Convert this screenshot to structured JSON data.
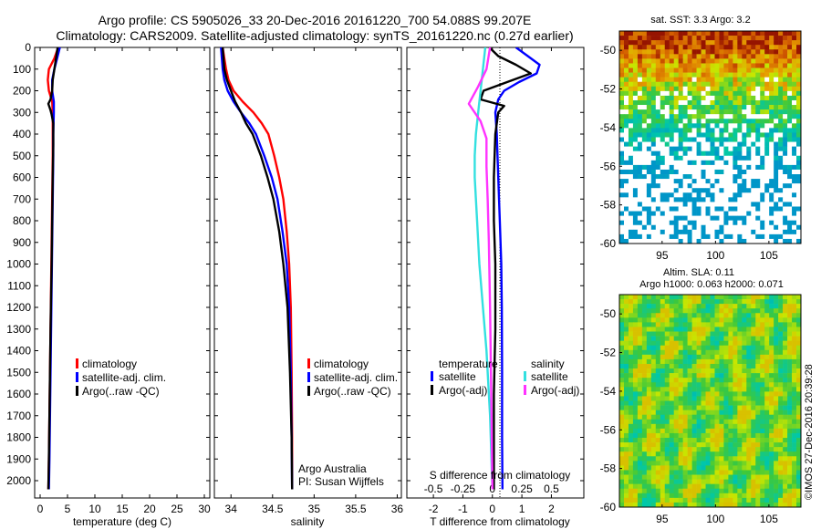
{
  "header": {
    "title_line1": "Argo profile: CS 5905026_33 20-Dec-2016 20161220_700 54.088S 99.207E",
    "title_line2": "Climatology: CARS2009. Satellite-adjusted climatology: synTS_20161220.nc (0.27d earlier)"
  },
  "colors": {
    "climatology": "#ff0000",
    "satellite_adj": "#0000ff",
    "argo": "#000000",
    "satellite_s": "#33e0e0",
    "argo_s": "#ff33ff"
  },
  "chart_data": [
    {
      "type": "line",
      "xlabel": "temperature (deg C)",
      "ylabel": "",
      "xlim": [
        -1,
        31
      ],
      "ylim": [
        2080,
        0
      ],
      "xticks": [
        "0",
        "5",
        "10",
        "15",
        "20",
        "25",
        "30"
      ],
      "yticks": [
        "0",
        "100",
        "200",
        "300",
        "400",
        "500",
        "600",
        "700",
        "800",
        "900",
        "1000",
        "1100",
        "1200",
        "1300",
        "1400",
        "1500",
        "1600",
        "1700",
        "1800",
        "1900",
        "2000"
      ],
      "legend": [
        "climatology",
        "satellite-adj. clim.",
        "Argo(..raw -QC)"
      ],
      "series": [
        {
          "name": "climatology",
          "color": "#ff0000",
          "x": [
            3.3,
            2.6,
            1.6,
            1.4,
            1.6,
            2.2,
            2.3,
            2.3,
            2.3,
            2.2,
            2.1,
            2.0,
            1.9,
            1.8,
            1.7,
            1.6,
            1.5
          ],
          "y": [
            0,
            50,
            100,
            150,
            200,
            250,
            300,
            400,
            500,
            700,
            900,
            1100,
            1300,
            1500,
            1700,
            1900,
            2040
          ]
        },
        {
          "name": "satellite-adj. clim.",
          "color": "#0000ff",
          "x": [
            3.6,
            3.1,
            2.6,
            2.2,
            2.2,
            2.5,
            2.5,
            2.4,
            2.4,
            2.3,
            2.2,
            2.1,
            2.0,
            1.9,
            1.8,
            1.7,
            1.6
          ],
          "y": [
            0,
            50,
            100,
            150,
            200,
            250,
            300,
            400,
            500,
            700,
            900,
            1100,
            1300,
            1500,
            1700,
            1900,
            2040
          ]
        },
        {
          "name": "Argo(..raw -QC)",
          "color": "#000000",
          "x": [
            3.2,
            2.9,
            2.6,
            2.3,
            2.2,
            1.9,
            1.5,
            1.9,
            2.1,
            2.4,
            2.4,
            2.3,
            2.2,
            2.1,
            1.9,
            1.8,
            1.7,
            1.6,
            1.5
          ],
          "y": [
            0,
            50,
            100,
            150,
            200,
            240,
            260,
            290,
            310,
            350,
            450,
            600,
            800,
            1000,
            1300,
            1500,
            1700,
            1900,
            2040
          ]
        }
      ]
    },
    {
      "type": "line",
      "xlabel": "salinity",
      "ylabel": "",
      "xlim": [
        33.8,
        36.05
      ],
      "ylim": [
        2080,
        0
      ],
      "xticks": [
        "34",
        "34.5",
        "35",
        "35.5",
        "36"
      ],
      "legend": [
        "climatology",
        "satellite-adj. clim.",
        "Argo(..raw -QC)"
      ],
      "annotations": [
        "Argo Australia",
        "PI: Susan Wijffels"
      ],
      "series": [
        {
          "name": "climatology",
          "color": "#ff0000",
          "x": [
            33.9,
            33.92,
            33.94,
            33.97,
            34.03,
            34.14,
            34.27,
            34.37,
            34.45,
            34.52,
            34.58,
            34.63,
            34.67,
            34.7,
            34.72,
            34.73,
            34.735,
            34.735
          ],
          "y": [
            0,
            50,
            100,
            150,
            200,
            250,
            300,
            350,
            400,
            500,
            600,
            700,
            850,
            1000,
            1200,
            1500,
            1800,
            2040
          ]
        },
        {
          "name": "satellite-adj. clim.",
          "color": "#0000ff",
          "x": [
            33.88,
            33.89,
            33.9,
            33.92,
            33.96,
            34.03,
            34.12,
            34.22,
            34.3,
            34.4,
            34.49,
            34.56,
            34.62,
            34.67,
            34.7,
            34.72,
            34.73,
            34.735
          ],
          "y": [
            0,
            50,
            100,
            150,
            200,
            250,
            300,
            350,
            400,
            500,
            600,
            700,
            850,
            1000,
            1200,
            1500,
            1800,
            2040
          ]
        },
        {
          "name": "Argo(..raw -QC)",
          "color": "#000000",
          "x": [
            33.9,
            33.91,
            33.92,
            33.95,
            34.0,
            34.05,
            34.12,
            34.18,
            34.26,
            34.36,
            34.44,
            34.51,
            34.58,
            34.63,
            34.68,
            34.71,
            34.73,
            34.735
          ],
          "y": [
            0,
            50,
            100,
            150,
            200,
            250,
            300,
            350,
            400,
            500,
            600,
            700,
            850,
            1000,
            1200,
            1500,
            1800,
            2040
          ]
        }
      ]
    },
    {
      "type": "line",
      "xlabel": "T difference from climatology",
      "top_label": "S difference from climatology",
      "xlim": [
        -2.9,
        3.1
      ],
      "ylim": [
        2080,
        0
      ],
      "xticks": [
        "-2",
        "-1",
        "0",
        "1",
        "2"
      ],
      "top_ticks": [
        "-0.5",
        "-0.25",
        "0",
        "0.25",
        "0.5"
      ],
      "legend_headers": [
        "temperature",
        "salinity"
      ],
      "legend": [
        "satellite",
        "Argo(-adj)",
        "satellite",
        "Argo(-adj)"
      ],
      "series": [
        {
          "name": "satellite",
          "group": "temperature",
          "color": "#0000ff",
          "x": [
            0.8,
            1.2,
            1.6,
            1.5,
            0.9,
            0.4,
            0.2,
            0.1,
            0.15,
            0.2,
            0.25,
            0.3,
            0.32,
            0.33,
            0.33,
            0.34
          ],
          "y": [
            0,
            40,
            80,
            120,
            160,
            200,
            240,
            300,
            400,
            600,
            800,
            1000,
            1200,
            1500,
            1800,
            2040
          ]
        },
        {
          "name": "Argo(-adj)",
          "group": "temperature",
          "color": "#000000",
          "x": [
            -0.1,
            0.2,
            0.8,
            1.3,
            0.5,
            -0.3,
            -0.4,
            0.4,
            0.2,
            0.1,
            0.05,
            0.05,
            0.1,
            0.1,
            0.05,
            0.05,
            0.05
          ],
          "y": [
            0,
            40,
            80,
            120,
            160,
            200,
            240,
            270,
            300,
            400,
            600,
            800,
            1000,
            1300,
            1600,
            1900,
            2040
          ]
        },
        {
          "name": "satellite",
          "group": "salinity",
          "color": "#33e0e0",
          "x": [
            -0.06,
            -0.08,
            -0.1,
            -0.12,
            -0.14,
            -0.15,
            -0.15,
            -0.14,
            -0.13,
            -0.11,
            -0.08,
            -0.05,
            -0.02,
            0.0
          ],
          "y": [
            0,
            100,
            200,
            300,
            400,
            500,
            600,
            700,
            800,
            1000,
            1200,
            1400,
            1700,
            2040
          ]
        },
        {
          "name": "Argo(-adj)",
          "group": "salinity",
          "color": "#ff33ff",
          "x": [
            -0.02,
            -0.05,
            -0.12,
            -0.2,
            -0.1,
            -0.05,
            -0.05,
            -0.04,
            -0.03,
            -0.02,
            -0.01,
            0.0
          ],
          "y": [
            0,
            100,
            180,
            260,
            340,
            420,
            550,
            700,
            900,
            1200,
            1600,
            2040
          ]
        }
      ]
    },
    {
      "type": "heatmap",
      "title": "sat. SST: 3.3  Argo: 3.2",
      "xlim": [
        91,
        108
      ],
      "ylim": [
        -60,
        -49
      ],
      "xticks": [
        "95",
        "100",
        "105"
      ],
      "yticks": [
        "-50",
        "-52",
        "-54",
        "-56",
        "-58",
        "-60"
      ]
    },
    {
      "type": "heatmap",
      "title": "Altim. SLA: 0.11",
      "subtitle": "Argo h1000: 0.063 h2000: 0.071",
      "xlim": [
        91,
        108
      ],
      "ylim": [
        -60,
        -49
      ],
      "xticks": [
        "95",
        "100",
        "105"
      ],
      "yticks": [
        "-50",
        "-52",
        "-54",
        "-56",
        "-58",
        "-60"
      ]
    }
  ],
  "footer": {
    "stamp": "©IMOS 27-Dec-2016 20:39:28"
  }
}
